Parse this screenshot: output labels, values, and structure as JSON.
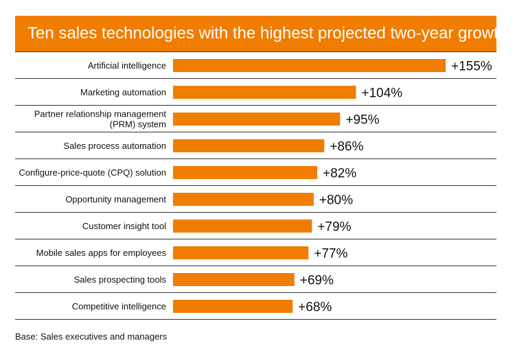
{
  "title": "Ten sales technologies with the highest projected two-year growth",
  "footnote": "Base: Sales executives and managers",
  "colors": {
    "accent": "#F07D00",
    "title_text": "#FFFFFF",
    "divider": "#333333"
  },
  "chart_data": {
    "type": "bar",
    "orientation": "horizontal",
    "title": "Ten sales technologies with the highest projected two-year growth",
    "categories": [
      "Artificial intelligence",
      "Marketing automation",
      "Partner relationship management (PRM) system",
      "Sales process automation",
      "Configure-price-quote (CPQ) solution",
      "Opportunity management",
      "Customer insight tool",
      "Mobile sales apps for employees",
      "Sales prospecting tools",
      "Competitive intelligence"
    ],
    "category_lines": [
      [
        "Artificial intelligence"
      ],
      [
        "Marketing automation"
      ],
      [
        "Partner relationship management",
        "(PRM) system"
      ],
      [
        "Sales process automation"
      ],
      [
        "Configure-price-quote (CPQ) solution"
      ],
      [
        "Opportunity management"
      ],
      [
        "Customer insight tool"
      ],
      [
        "Mobile sales apps for employees"
      ],
      [
        "Sales prospecting tools"
      ],
      [
        "Competitive intelligence"
      ]
    ],
    "values": [
      155,
      104,
      95,
      86,
      82,
      80,
      79,
      77,
      69,
      68
    ],
    "data_labels": [
      "+155%",
      "+104%",
      "+95%",
      "+86%",
      "+82%",
      "+80%",
      "+79%",
      "+77%",
      "+69%",
      "+68%"
    ],
    "grid": false,
    "legend": "none"
  }
}
